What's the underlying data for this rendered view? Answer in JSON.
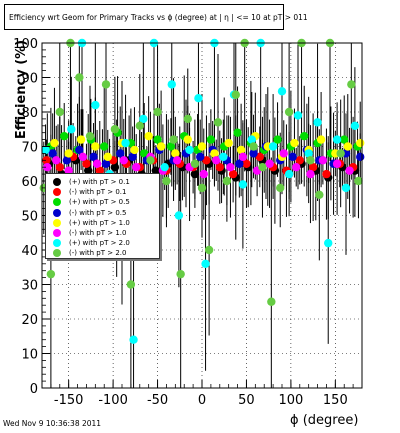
{
  "header": {
    "title": "Efficiency wrt Geom for Primary Tracks vs ϕ (degree) at | η | <= 10 at pT > 011",
    "timestamp": "Wed Nov  9 10:36:38 2011"
  },
  "chart_data": {
    "type": "scatter",
    "title": "Efficiency wrt Geom for Primary Tracks vs ϕ (degree) at | η | <= 10 at pT > 011",
    "xlabel": "ϕ (degree)",
    "ylabel": "Efficiency (%)",
    "xlim": [
      -180,
      180
    ],
    "ylim": [
      0,
      100
    ],
    "x_ticks": [
      -150,
      -100,
      -50,
      0,
      50,
      100,
      150
    ],
    "y_ticks": [
      0,
      10,
      20,
      30,
      40,
      50,
      60,
      70,
      80,
      90,
      100
    ],
    "grid": true,
    "legend_position": "middle-left",
    "series": [
      {
        "name": "(+) with pT > 0.1",
        "color": "#000000",
        "points": [
          [
            -172,
            65
          ],
          [
            -158,
            62
          ],
          [
            -142,
            66
          ],
          [
            -128,
            63
          ],
          [
            -112,
            61
          ],
          [
            -98,
            64
          ],
          [
            -82,
            66
          ],
          [
            -68,
            62
          ],
          [
            -52,
            63
          ],
          [
            -38,
            65
          ],
          [
            -22,
            64
          ],
          [
            -8,
            62
          ],
          [
            8,
            65
          ],
          [
            22,
            63
          ],
          [
            38,
            61
          ],
          [
            52,
            64
          ],
          [
            68,
            66
          ],
          [
            82,
            63
          ],
          [
            98,
            62
          ],
          [
            112,
            65
          ],
          [
            128,
            63
          ],
          [
            142,
            61
          ],
          [
            158,
            64
          ],
          [
            172,
            63
          ]
        ]
      },
      {
        "name": "(-) with pT > 0.1",
        "color": "#ff0000",
        "points": [
          [
            -175,
            66
          ],
          [
            -160,
            64
          ],
          [
            -145,
            67
          ],
          [
            -130,
            65
          ],
          [
            -115,
            63
          ],
          [
            -100,
            66
          ],
          [
            -85,
            65
          ],
          [
            -70,
            64
          ],
          [
            -55,
            66
          ],
          [
            -40,
            63
          ],
          [
            -25,
            65
          ],
          [
            -10,
            64
          ],
          [
            5,
            66
          ],
          [
            20,
            64
          ],
          [
            35,
            62
          ],
          [
            50,
            65
          ],
          [
            65,
            67
          ],
          [
            80,
            64
          ],
          [
            95,
            63
          ],
          [
            110,
            66
          ],
          [
            125,
            64
          ],
          [
            140,
            62
          ],
          [
            155,
            65
          ],
          [
            170,
            64
          ]
        ]
      },
      {
        "name": "(+) with pT > 0.5",
        "color": "#00dd00",
        "points": [
          [
            -170,
            70
          ],
          [
            -155,
            73
          ],
          [
            -140,
            69
          ],
          [
            -125,
            72
          ],
          [
            -110,
            70
          ],
          [
            -95,
            74
          ],
          [
            -80,
            71
          ],
          [
            -65,
            68
          ],
          [
            -50,
            72
          ],
          [
            -35,
            70
          ],
          [
            -20,
            73
          ],
          [
            -5,
            69
          ],
          [
            10,
            72
          ],
          [
            25,
            70
          ],
          [
            40,
            74
          ],
          [
            55,
            71
          ],
          [
            70,
            69
          ],
          [
            85,
            72
          ],
          [
            100,
            70
          ],
          [
            115,
            73
          ],
          [
            130,
            71
          ],
          [
            145,
            68
          ],
          [
            160,
            72
          ],
          [
            175,
            70
          ]
        ]
      },
      {
        "name": "(-) with pT > 0.5",
        "color": "#0000cc",
        "points": [
          [
            -168,
            68
          ],
          [
            -152,
            66
          ],
          [
            -138,
            69
          ],
          [
            -122,
            67
          ],
          [
            -108,
            65
          ],
          [
            -92,
            68
          ],
          [
            -78,
            67
          ],
          [
            -62,
            66
          ],
          [
            -48,
            69
          ],
          [
            -32,
            66
          ],
          [
            -18,
            68
          ],
          [
            -2,
            67
          ],
          [
            12,
            69
          ],
          [
            28,
            66
          ],
          [
            42,
            65
          ],
          [
            58,
            68
          ],
          [
            72,
            70
          ],
          [
            88,
            66
          ],
          [
            102,
            67
          ],
          [
            118,
            69
          ],
          [
            132,
            66
          ],
          [
            148,
            65
          ],
          [
            162,
            68
          ],
          [
            178,
            67
          ]
        ]
      },
      {
        "name": "(+) with pT > 1.0",
        "color": "#ffff00",
        "points": [
          [
            -166,
            71
          ],
          [
            -150,
            68
          ],
          [
            -136,
            72
          ],
          [
            -120,
            70
          ],
          [
            -106,
            67
          ],
          [
            -90,
            71
          ],
          [
            -76,
            69
          ],
          [
            -60,
            73
          ],
          [
            -46,
            70
          ],
          [
            -30,
            68
          ],
          [
            -16,
            72
          ],
          [
            0,
            70
          ],
          [
            14,
            68
          ],
          [
            30,
            71
          ],
          [
            44,
            69
          ],
          [
            60,
            73
          ],
          [
            74,
            70
          ],
          [
            90,
            67
          ],
          [
            104,
            71
          ],
          [
            120,
            69
          ],
          [
            134,
            72
          ],
          [
            150,
            68
          ],
          [
            164,
            70
          ],
          [
            178,
            71
          ]
        ]
      },
      {
        "name": "(-) with pT > 1.0",
        "color": "#ff00ff",
        "points": [
          [
            -174,
            64
          ],
          [
            -164,
            66
          ],
          [
            -150,
            63
          ],
          [
            -134,
            67
          ],
          [
            -118,
            65
          ],
          [
            -104,
            62
          ],
          [
            -88,
            66
          ],
          [
            -74,
            64
          ],
          [
            -58,
            67
          ],
          [
            -44,
            63
          ],
          [
            -28,
            66
          ],
          [
            -14,
            64
          ],
          [
            2,
            62
          ],
          [
            16,
            66
          ],
          [
            32,
            64
          ],
          [
            46,
            67
          ],
          [
            62,
            63
          ],
          [
            76,
            65
          ],
          [
            92,
            68
          ],
          [
            106,
            64
          ],
          [
            122,
            62
          ],
          [
            136,
            66
          ],
          [
            152,
            65
          ],
          [
            166,
            63
          ]
        ]
      },
      {
        "name": "(+) with pT > 2.0",
        "color": "#00ffff",
        "points": [
          [
            -176,
            69
          ],
          [
            -162,
            58
          ],
          [
            -147,
            75
          ],
          [
            -135,
            100
          ],
          [
            -120,
            82
          ],
          [
            -104,
            62
          ],
          [
            -96,
            55
          ],
          [
            -86,
            71
          ],
          [
            -77,
            14
          ],
          [
            -66,
            78
          ],
          [
            -54,
            100
          ],
          [
            -42,
            64
          ],
          [
            -34,
            88
          ],
          [
            -26,
            50
          ],
          [
            -14,
            69
          ],
          [
            -4,
            84
          ],
          [
            4,
            36
          ],
          [
            14,
            100
          ],
          [
            24,
            67
          ],
          [
            36,
            85
          ],
          [
            46,
            59
          ],
          [
            56,
            72
          ],
          [
            66,
            100
          ],
          [
            80,
            70
          ],
          [
            90,
            86
          ],
          [
            98,
            62
          ],
          [
            108,
            79
          ],
          [
            120,
            68
          ],
          [
            130,
            77
          ],
          [
            142,
            42
          ],
          [
            152,
            72
          ],
          [
            162,
            58
          ],
          [
            172,
            76
          ]
        ]
      },
      {
        "name": "(-) with pT > 2.0",
        "color": "#66cc44",
        "points": [
          [
            -178,
            58
          ],
          [
            -170,
            33
          ],
          [
            -160,
            80
          ],
          [
            -148,
            100
          ],
          [
            -138,
            90
          ],
          [
            -126,
            73
          ],
          [
            -118,
            60
          ],
          [
            -108,
            88
          ],
          [
            -98,
            75
          ],
          [
            -90,
            45
          ],
          [
            -80,
            30
          ],
          [
            -70,
            76
          ],
          [
            -58,
            66
          ],
          [
            -50,
            80
          ],
          [
            -40,
            60
          ],
          [
            -32,
            72
          ],
          [
            -24,
            33
          ],
          [
            -16,
            78
          ],
          [
            -8,
            65
          ],
          [
            0,
            58
          ],
          [
            8,
            40
          ],
          [
            18,
            77
          ],
          [
            28,
            60
          ],
          [
            38,
            85
          ],
          [
            48,
            100
          ],
          [
            58,
            70
          ],
          [
            68,
            64
          ],
          [
            78,
            25
          ],
          [
            88,
            58
          ],
          [
            98,
            80
          ],
          [
            112,
            100
          ],
          [
            122,
            66
          ],
          [
            132,
            56
          ],
          [
            144,
            100
          ],
          [
            156,
            68
          ],
          [
            168,
            88
          ],
          [
            176,
            60
          ]
        ]
      }
    ]
  }
}
